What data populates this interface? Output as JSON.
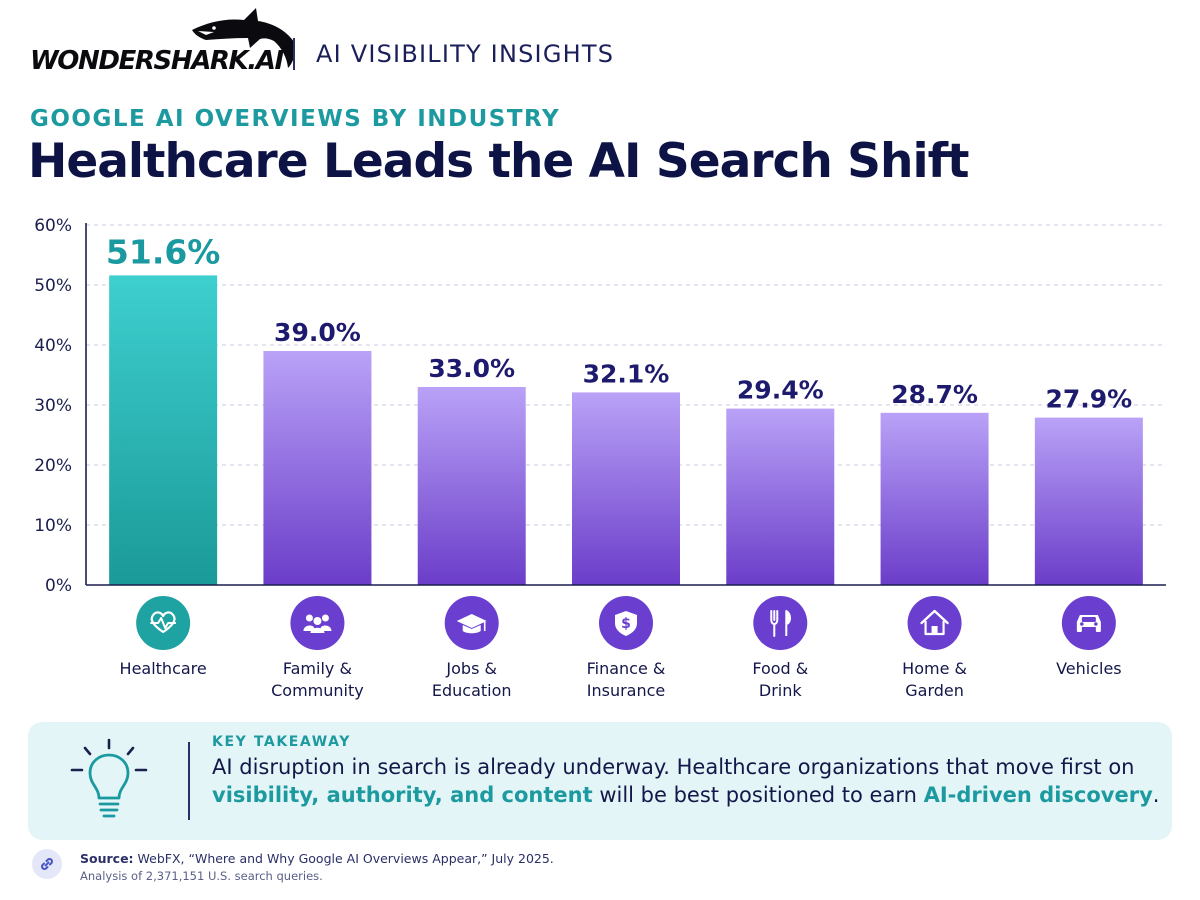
{
  "brand": {
    "logo_text": "WONDERSHARK.AI",
    "tagline": "AI VISIBILITY INSIGHTS"
  },
  "kicker": "GOOGLE AI OVERVIEWS BY INDUSTRY",
  "headline": "Healthcare Leads the AI Search Shift",
  "chart_data": {
    "type": "bar",
    "title": "",
    "xlabel": "",
    "ylabel": "",
    "categories": [
      "Healthcare",
      "Family & Community",
      "Jobs & Education",
      "Finance & Insurance",
      "Food & Drink",
      "Home & Garden",
      "Vehicles"
    ],
    "category_lines": [
      [
        "Healthcare"
      ],
      [
        "Family &",
        "Community"
      ],
      [
        "Jobs &",
        "Education"
      ],
      [
        "Finance &",
        "Insurance"
      ],
      [
        "Food &",
        "Drink"
      ],
      [
        "Home &",
        "Garden"
      ],
      [
        "Vehicles"
      ]
    ],
    "values": [
      51.6,
      39.0,
      33.0,
      32.1,
      29.4,
      28.7,
      27.9
    ],
    "value_labels": [
      "51.6%",
      "39.0%",
      "33.0%",
      "32.1%",
      "29.4%",
      "28.7%",
      "27.9%"
    ],
    "ylim": [
      0,
      60
    ],
    "yticks": [
      0,
      10,
      20,
      30,
      40,
      50,
      60
    ],
    "ytick_labels": [
      "0%",
      "10%",
      "20%",
      "30%",
      "40%",
      "50%",
      "60%"
    ],
    "icons": [
      "heart-pulse-icon",
      "family-icon",
      "graduation-cap-icon",
      "shield-dollar-icon",
      "fork-knife-icon",
      "home-icon",
      "car-icon"
    ],
    "grid": true,
    "highlight_index": 0,
    "colors": {
      "highlight_top": "#3ecfcf",
      "highlight_bottom": "#1a9a98",
      "bar_top": "#b9a2f7",
      "bar_bottom": "#6b3dc9",
      "label_highlight": "#1a9aa0",
      "label": "#1e1a6e",
      "icon_highlight": "#1fa2a2",
      "icon": "#6a3fd0"
    }
  },
  "takeaway": {
    "label": "KEY TAKEAWAY",
    "text_part1": "AI disruption in search is already underway. Healthcare organizations that move first on ",
    "highlight1": "visibility, authority, and content",
    "text_part2": " will be best positioned to earn ",
    "highlight2": "AI-driven discovery",
    "text_part3": "."
  },
  "source": {
    "label": "Source:",
    "text": "WebFX, “Where and Why Google AI Overviews Appear,” July 2025.",
    "note": "Analysis of 2,371,151 U.S. search queries."
  }
}
